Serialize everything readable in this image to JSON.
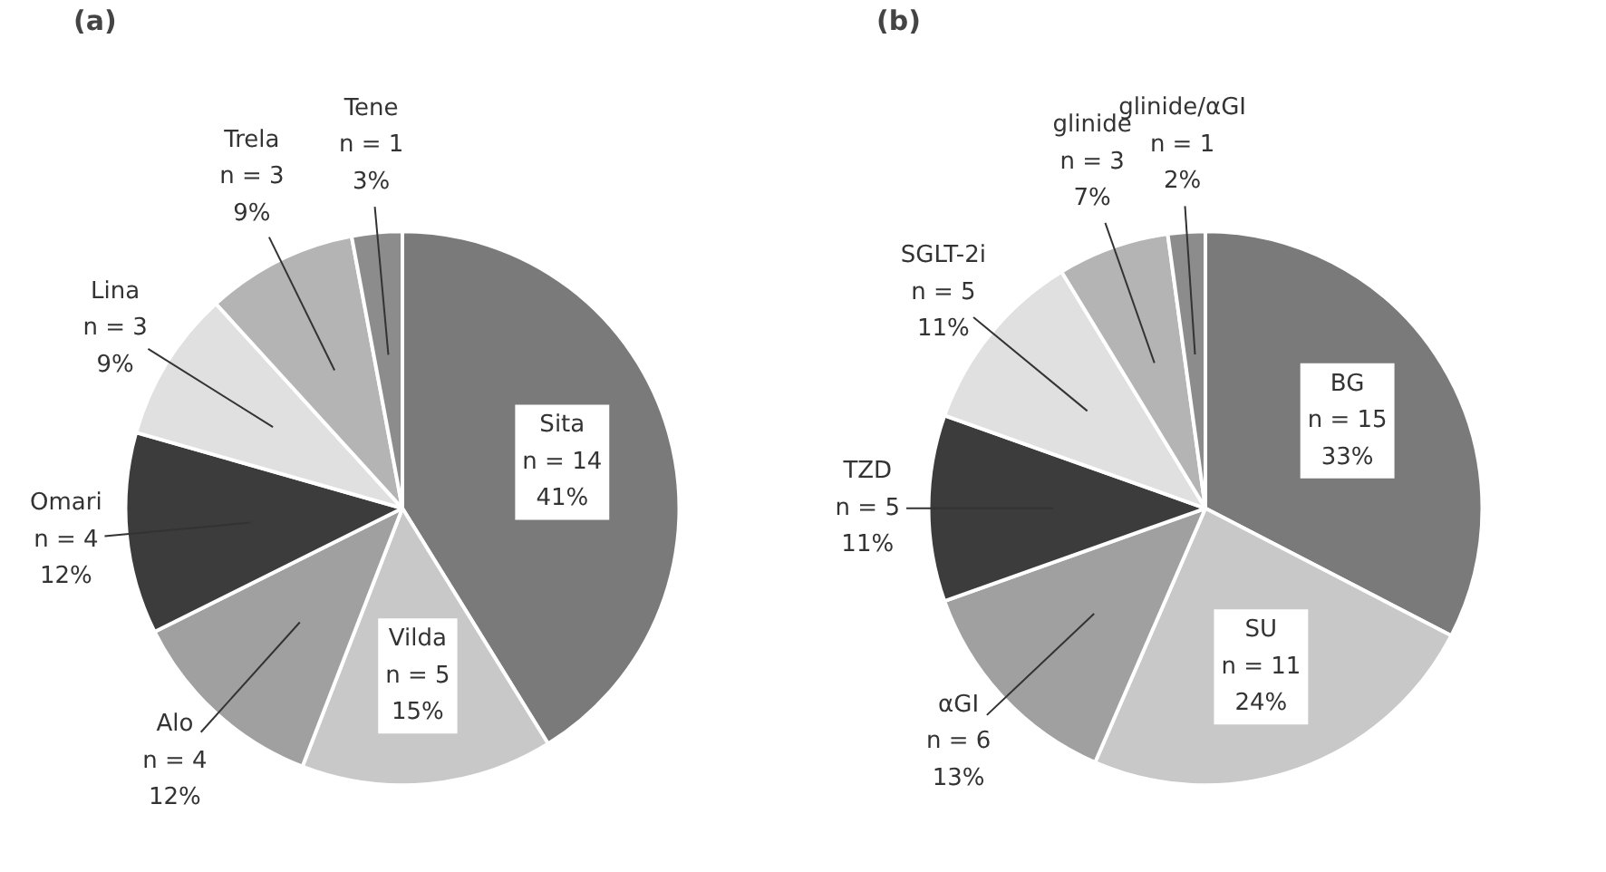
{
  "chart_data": [
    {
      "type": "pie",
      "title": "(a)",
      "categories": [
        "Sita",
        "Vilda",
        "Alo",
        "Omari",
        "Lina",
        "Trela",
        "Tene"
      ],
      "values": [
        14,
        5,
        4,
        4,
        3,
        3,
        1
      ],
      "value_labels": [
        "n = 14\n41%",
        "n = 5\n15%",
        "n = 4\n12%",
        "n = 4\n12%",
        "n = 3\n9%",
        "n = 3\n9%",
        "n = 1\n3%"
      ],
      "colors": [
        "#7a7a7a",
        "#c8c8c8",
        "#a0a0a0",
        "#3c3c3c",
        "#e0e0e0",
        "#b4b4b4",
        "#8c8c8c"
      ],
      "legend": false
    },
    {
      "type": "pie",
      "title": "(b)",
      "categories": [
        "BG",
        "SU",
        "αGI",
        "TZD",
        "SGLT-2i",
        "glinide",
        "glinide/αGI"
      ],
      "values": [
        15,
        11,
        6,
        5,
        5,
        3,
        1
      ],
      "value_labels": [
        "n = 15\n33%",
        "n = 11\n24%",
        "n = 6\n13%",
        "n = 5\n11%",
        "n = 5\n11%",
        "n = 3\n7%",
        "n = 1\n2%"
      ],
      "colors": [
        "#7a7a7a",
        "#c8c8c8",
        "#a0a0a0",
        "#3c3c3c",
        "#e0e0e0",
        "#b4b4b4",
        "#8c8c8c"
      ],
      "legend": false
    }
  ]
}
